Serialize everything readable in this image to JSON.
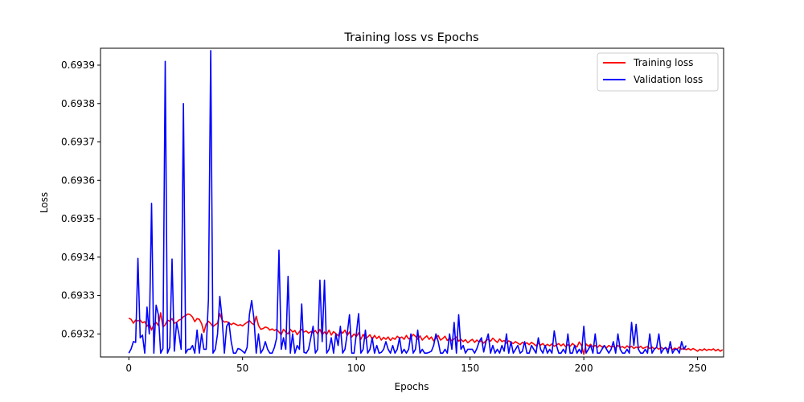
{
  "chart_data": {
    "type": "line",
    "title": "Training loss vs Epochs",
    "xlabel": "Epochs",
    "ylabel": "Loss",
    "xlim": [
      -12.45,
      261.45
    ],
    "ylim": [
      0.69314,
      0.693944
    ],
    "xticks": [
      0,
      50,
      100,
      150,
      200,
      250
    ],
    "yticks": [
      0.6932,
      0.6933,
      0.6934,
      0.6935,
      0.6936,
      0.6937,
      0.6938,
      0.6939
    ],
    "xtick_labels": [
      "0",
      "50",
      "100",
      "150",
      "200",
      "250"
    ],
    "ytick_labels": [
      "0.6932",
      "0.6933",
      "0.6934",
      "0.6935",
      "0.6936",
      "0.6937",
      "0.6938",
      "0.6939"
    ],
    "grid": false,
    "legend_position": "upper right",
    "series": [
      {
        "name": "Training loss",
        "color": "#ff0000",
        "values": [
          0.693241,
          0.693238,
          0.693228,
          0.693236,
          0.693234,
          0.693236,
          0.693229,
          0.693232,
          0.69322,
          0.693228,
          0.69321,
          0.693225,
          0.69323,
          0.693222,
          0.693255,
          0.693218,
          0.693224,
          0.693236,
          0.693233,
          0.69324,
          0.693228,
          0.69323,
          0.693236,
          0.693238,
          0.693245,
          0.693248,
          0.693252,
          0.69325,
          0.693244,
          0.693232,
          0.69324,
          0.693238,
          0.693227,
          0.693204,
          0.693226,
          0.693233,
          0.693227,
          0.693219,
          0.693224,
          0.693228,
          0.693253,
          0.693236,
          0.693231,
          0.693232,
          0.693229,
          0.693224,
          0.693228,
          0.693225,
          0.693222,
          0.693224,
          0.693221,
          0.693226,
          0.69323,
          0.693235,
          0.693228,
          0.693224,
          0.693246,
          0.693222,
          0.693212,
          0.693214,
          0.693218,
          0.693216,
          0.69321,
          0.693213,
          0.693209,
          0.693212,
          0.693205,
          0.693198,
          0.693212,
          0.693205,
          0.6932,
          0.693212,
          0.693205,
          0.693209,
          0.693198,
          0.693206,
          0.693212,
          0.693205,
          0.693208,
          0.693202,
          0.693206,
          0.693203,
          0.693209,
          0.6932,
          0.693212,
          0.693198,
          0.693205,
          0.693199,
          0.69321,
          0.693197,
          0.693206,
          0.693201,
          0.693195,
          0.693208,
          0.693202,
          0.69321,
          0.693196,
          0.693205,
          0.693192,
          0.6932,
          0.693193,
          0.693203,
          0.693186,
          0.693199,
          0.693188,
          0.693192,
          0.693198,
          0.693186,
          0.693196,
          0.693188,
          0.693194,
          0.693184,
          0.693191,
          0.693186,
          0.693192,
          0.693183,
          0.69319,
          0.693186,
          0.693194,
          0.693189,
          0.693192,
          0.693186,
          0.693196,
          0.693187,
          0.69319,
          0.693199,
          0.693194,
          0.693186,
          0.693195,
          0.693184,
          0.69319,
          0.693195,
          0.693186,
          0.693192,
          0.693182,
          0.693189,
          0.693196,
          0.693184,
          0.693188,
          0.693194,
          0.693183,
          0.693189,
          0.693182,
          0.693187,
          0.693192,
          0.693181,
          0.693186,
          0.69318,
          0.693185,
          0.693177,
          0.693182,
          0.693186,
          0.693178,
          0.693184,
          0.693179,
          0.693182,
          0.693176,
          0.693183,
          0.693186,
          0.693181,
          0.693189,
          0.693183,
          0.693178,
          0.693187,
          0.69318,
          0.693183,
          0.693176,
          0.693182,
          0.693178,
          0.693175,
          0.69318,
          0.693176,
          0.693172,
          0.693178,
          0.693174,
          0.693177,
          0.693172,
          0.693178,
          0.693174,
          0.693169,
          0.693176,
          0.693171,
          0.693175,
          0.693168,
          0.693173,
          0.693169,
          0.693174,
          0.693168,
          0.693171,
          0.693175,
          0.693169,
          0.693174,
          0.693167,
          0.693172,
          0.693168,
          0.693175,
          0.69317,
          0.693166,
          0.693179,
          0.69317,
          0.693147,
          0.693174,
          0.693168,
          0.693173,
          0.693166,
          0.69317,
          0.693165,
          0.693171,
          0.693166,
          0.693169,
          0.693164,
          0.69317,
          0.693166,
          0.693168,
          0.693163,
          0.69317,
          0.693165,
          0.693167,
          0.693163,
          0.693169,
          0.693164,
          0.693168,
          0.693162,
          0.693166,
          0.693163,
          0.693168,
          0.693162,
          0.693165,
          0.693167,
          0.693162,
          0.693166,
          0.693161,
          0.693165,
          0.69316,
          0.693165,
          0.693161,
          0.693164,
          0.69316,
          0.693165,
          0.693159,
          0.693163,
          0.69316,
          0.693166,
          0.69316,
          0.693163,
          0.693159,
          0.693162,
          0.693158,
          0.693162,
          0.693159,
          0.693155,
          0.69316,
          0.693157,
          0.693161,
          0.693157,
          0.69316,
          0.693158,
          0.693161,
          0.693156,
          0.69316,
          0.693155,
          0.693159
        ]
      },
      {
        "name": "Validation loss",
        "color": "#0000ff",
        "values": [
          0.69315,
          0.693161,
          0.69318,
          0.693178,
          0.693397,
          0.69319,
          0.693197,
          0.69315,
          0.69327,
          0.6932,
          0.69354,
          0.69315,
          0.693275,
          0.69325,
          0.69315,
          0.693162,
          0.69391,
          0.69315,
          0.693165,
          0.693395,
          0.693155,
          0.69323,
          0.6932,
          0.69316,
          0.6938,
          0.69315,
          0.69316,
          0.69316,
          0.69317,
          0.69315,
          0.69321,
          0.69315,
          0.6932,
          0.69316,
          0.69316,
          0.69329,
          0.693938,
          0.69315,
          0.69316,
          0.6932,
          0.693298,
          0.69324,
          0.69315,
          0.69322,
          0.69323,
          0.69318,
          0.69315,
          0.69315,
          0.693162,
          0.69316,
          0.693155,
          0.69315,
          0.693165,
          0.69325,
          0.693287,
          0.69324,
          0.69315,
          0.6932,
          0.69315,
          0.69316,
          0.69318,
          0.69316,
          0.69315,
          0.69315,
          0.693165,
          0.69319,
          0.693418,
          0.69316,
          0.69319,
          0.69316,
          0.69335,
          0.69315,
          0.6932,
          0.69315,
          0.69317,
          0.69316,
          0.693278,
          0.693152,
          0.69315,
          0.69316,
          0.69319,
          0.69322,
          0.69315,
          0.69316,
          0.69334,
          0.69318,
          0.69334,
          0.69315,
          0.69316,
          0.69319,
          0.69315,
          0.6932,
          0.69317,
          0.69322,
          0.69315,
          0.69316,
          0.6932,
          0.69325,
          0.69315,
          0.69315,
          0.6932,
          0.693253,
          0.69315,
          0.69316,
          0.69321,
          0.69315,
          0.69316,
          0.69319,
          0.69315,
          0.69317,
          0.69315,
          0.693152,
          0.69316,
          0.69318,
          0.69316,
          0.69315,
          0.69317,
          0.69315,
          0.69316,
          0.69319,
          0.69315,
          0.69316,
          0.69315,
          0.69316,
          0.6932,
          0.69315,
          0.69316,
          0.69321,
          0.69315,
          0.69316,
          0.69315,
          0.69315,
          0.693152,
          0.693155,
          0.69317,
          0.6932,
          0.69318,
          0.69315,
          0.69315,
          0.69316,
          0.69315,
          0.6932,
          0.69316,
          0.69323,
          0.69315,
          0.69325,
          0.69316,
          0.69317,
          0.69315,
          0.69316,
          0.69316,
          0.69316,
          0.69315,
          0.693162,
          0.69318,
          0.69319,
          0.693153,
          0.69318,
          0.6932,
          0.69315,
          0.69317,
          0.69315,
          0.69316,
          0.69315,
          0.69317,
          0.693155,
          0.6932,
          0.69315,
          0.69318,
          0.69315,
          0.69316,
          0.69317,
          0.69315,
          0.693155,
          0.69318,
          0.69315,
          0.69315,
          0.69317,
          0.69316,
          0.69315,
          0.69319,
          0.69316,
          0.69315,
          0.69317,
          0.69315,
          0.69316,
          0.69315,
          0.693208,
          0.69317,
          0.69315,
          0.69315,
          0.69316,
          0.69315,
          0.6932,
          0.69315,
          0.69315,
          0.69317,
          0.69315,
          0.69316,
          0.69315,
          0.69322,
          0.69315,
          0.69316,
          0.69317,
          0.69315,
          0.6932,
          0.69315,
          0.69315,
          0.69316,
          0.69317,
          0.69316,
          0.69315,
          0.69316,
          0.69318,
          0.69315,
          0.6932,
          0.69316,
          0.69315,
          0.69315,
          0.69316,
          0.69315,
          0.69323,
          0.69317,
          0.693225,
          0.69316,
          0.69315,
          0.69315,
          0.69316,
          0.69315,
          0.6932,
          0.69315,
          0.69316,
          0.693165,
          0.6932,
          0.69315,
          0.69316,
          0.693165,
          0.69315,
          0.69318,
          0.69315,
          0.69316,
          0.69316,
          0.69315,
          0.69318,
          0.69316,
          0.69317
        ]
      }
    ]
  }
}
